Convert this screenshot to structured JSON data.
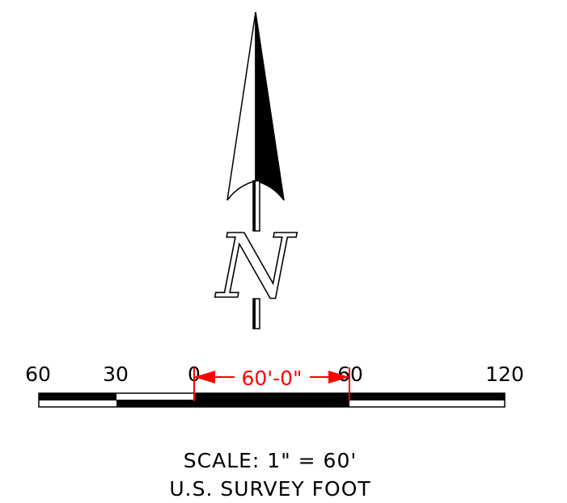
{
  "north_arrow": {
    "letter": "N"
  },
  "scale_bar": {
    "tick_labels": [
      "60",
      "30",
      "0",
      "60",
      "120"
    ],
    "dimension_label": "60'-0\""
  },
  "caption": {
    "scale_text": "SCALE:  1\"  =  60'",
    "unit_text": "U.S. SURVEY FOOT"
  },
  "colors": {
    "ink": "#000000",
    "dimension": "#ff0000",
    "background": "#ffffff"
  }
}
